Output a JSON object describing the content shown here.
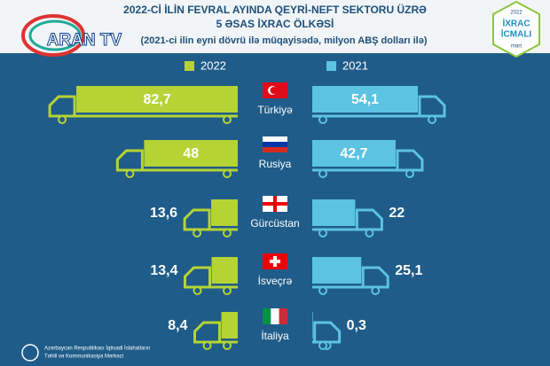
{
  "chart_data": {
    "type": "butterfly",
    "title_lines": [
      "2022-Cİ İLİN FEVRAL AYINDA QEYRİ-NEFT SEKTORU ÜZRƏ",
      "5 ƏSAS İXRAC ÖLKƏSİ"
    ],
    "subtitle": "(2021-ci ilin eyni dövrü ilə müqayisədə, milyon ABŞ dolları ilə)",
    "categories": [
      "Türkiyə",
      "Rusiya",
      "Gürcüstan",
      "İsveçrə",
      "İtaliya"
    ],
    "series": [
      {
        "name": "2022",
        "color": "#b6d335",
        "values": [
          82.7,
          48,
          13.6,
          13.4,
          8.4
        ],
        "value_labels": [
          "82,7",
          "48",
          "13,6",
          "13,4",
          "8,4"
        ]
      },
      {
        "name": "2021",
        "color": "#5cc3e2",
        "values": [
          54.1,
          42.7,
          22,
          25.1,
          0.3
        ],
        "value_labels": [
          "54,1",
          "42,7",
          "22",
          "25,1",
          "0,3"
        ]
      }
    ]
  },
  "watermark": "ARAN TV",
  "badge": {
    "year": "2022",
    "lines": [
      "İXRAC",
      "İCMALI"
    ],
    "month": "mart"
  },
  "footer": [
    "Azərbaycan Respublikası İqtisadi İslahatların",
    "Təhlil və Kommunikasiya Mərkəzi"
  ]
}
